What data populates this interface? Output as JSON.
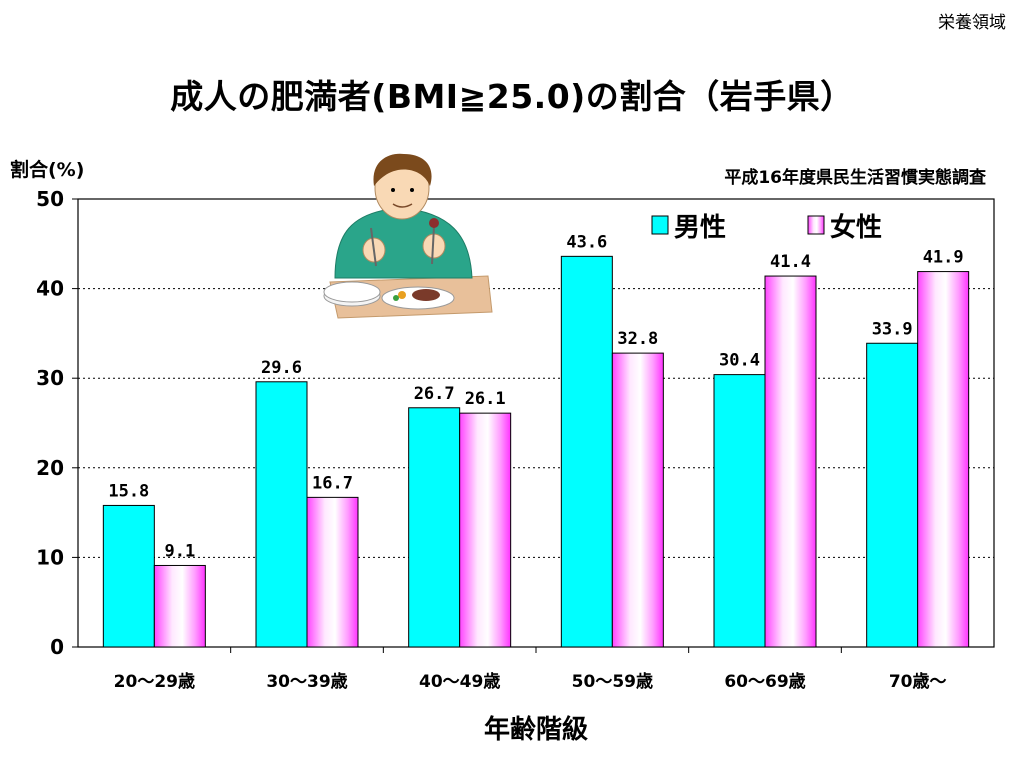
{
  "slide": {
    "corner_label": "栄養領域",
    "title": "成人の肥満者(BMI≧25.0)の割合（岩手県）",
    "source": "平成16年度県民生活習慣実態調査"
  },
  "chart_data": {
    "type": "bar",
    "title": "成人の肥満者(BMI≧25.0)の割合（岩手県）",
    "xlabel": "年齢階級",
    "ylabel": "割合(%)",
    "ylim": [
      0,
      50
    ],
    "yticks": [
      0,
      10,
      20,
      30,
      40,
      50
    ],
    "grid": true,
    "legend_position": "top-right",
    "categories": [
      "20～29歳",
      "30～39歳",
      "40～49歳",
      "50～59歳",
      "60～69歳",
      "70歳～"
    ],
    "series": [
      {
        "name": "男性",
        "values": [
          15.8,
          29.6,
          26.7,
          43.6,
          30.4,
          33.9
        ],
        "color": "#00FFFF"
      },
      {
        "name": "女性",
        "values": [
          9.1,
          16.7,
          26.1,
          32.8,
          41.4,
          41.9
        ],
        "color": "#FF66FF"
      }
    ],
    "data_labels": [
      [
        "15.8",
        "29.6",
        "26.7",
        "43.6",
        "30.4",
        "33.9"
      ],
      [
        "9.1",
        "16.7",
        "26.1",
        "32.8",
        "41.4",
        "41.9"
      ]
    ]
  },
  "illustration": {
    "icon": "man-eating-icon"
  }
}
